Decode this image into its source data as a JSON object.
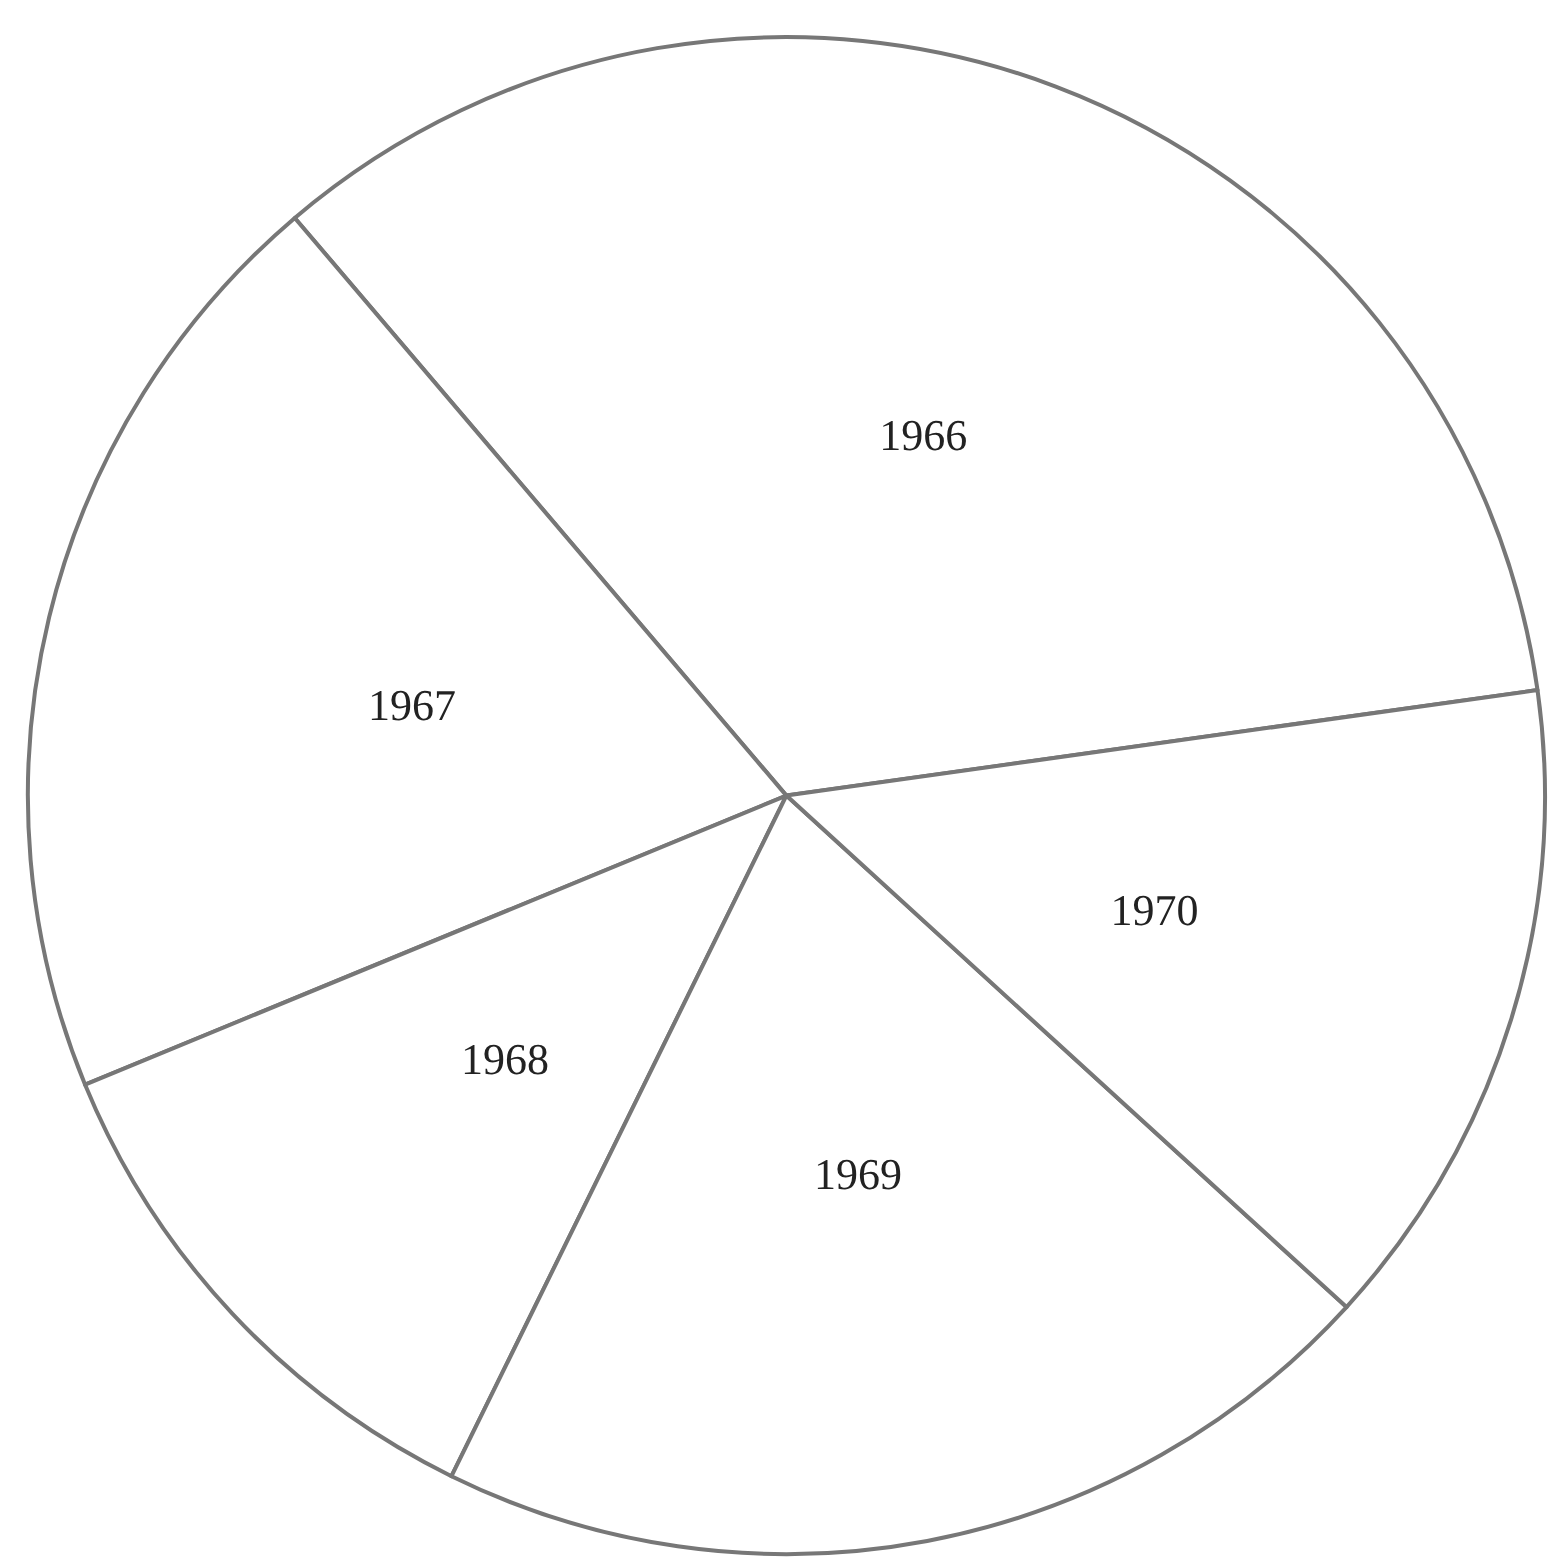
{
  "chart_data": {
    "type": "pie",
    "categories": [
      "1966",
      "1967",
      "1968",
      "1969",
      "1970"
    ],
    "values": [
      34,
      20,
      11.5,
      20.5,
      14
    ],
    "colors": [
      "#ffffff",
      "#ffffff",
      "#ffffff",
      "#ffffff",
      "#ffffff"
    ]
  }
}
